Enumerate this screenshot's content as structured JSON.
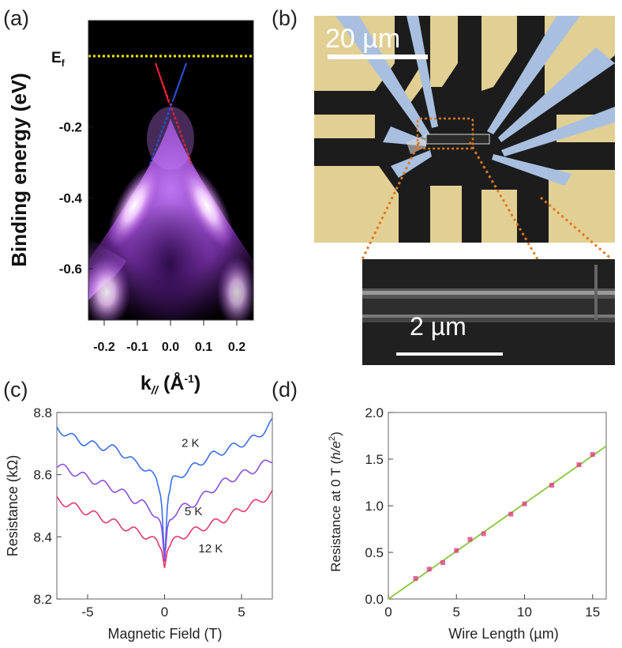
{
  "panels": {
    "a": {
      "label": "(a)",
      "ylabel": "Binding energy (eV)",
      "xlabel_main": "k",
      "xlabel_sub": "//",
      "xlabel_unit_open": " (Å",
      "xlabel_unit_sup": "-1",
      "xlabel_unit_close": ")",
      "ef_main": "E",
      "ef_sub": "f",
      "yticks": [
        {
          "label": "-0.2",
          "value": -0.2
        },
        {
          "label": "-0.4",
          "value": -0.4
        },
        {
          "label": "-0.6",
          "value": -0.6
        }
      ],
      "xticks": [
        {
          "label": "-0.2",
          "value": -0.2
        },
        {
          "label": "-0.1",
          "value": -0.1
        },
        {
          "label": "0.0",
          "value": 0.0
        },
        {
          "label": "0.1",
          "value": 0.1
        },
        {
          "label": "0.2",
          "value": 0.2
        }
      ],
      "colors": {
        "ef_line": "#f2e600",
        "dirac_red": "#e8203a",
        "dirac_blue": "#2b4fd8",
        "spectrum": "#c56bff"
      }
    },
    "b": {
      "label": "(b)",
      "scale_main": "20 µm",
      "scale_inset": "2 µm",
      "colors": {
        "pad": "#e2cf93",
        "substrate": "#1a1a1a",
        "lead": "#a9bfe0",
        "dotted": "#e07820"
      }
    }
  },
  "chart_data": [
    {
      "id": "c",
      "type": "line",
      "panel_label": "(c)",
      "title": "",
      "xlabel": "Magnetic Field (T)",
      "ylabel": "Resistance (kΩ)",
      "xlim": [
        -7,
        7
      ],
      "ylim": [
        8.2,
        8.8
      ],
      "xticks": [
        -5,
        0,
        5
      ],
      "yticks": [
        8.2,
        8.4,
        8.6,
        8.8
      ],
      "ytick_labels": [
        "8.2",
        "8.4",
        "8.6",
        "8.8"
      ],
      "xtick_labels": [
        "-5",
        "0",
        "5"
      ],
      "series": [
        {
          "name": "2 K",
          "color": "#3a6fe8",
          "label_at": [
            1.1,
            8.69
          ],
          "x": [
            -7,
            -6,
            -5,
            -4,
            -3,
            -2,
            -1.5,
            -1,
            -0.5,
            -0.2,
            0,
            0.2,
            0.5,
            1,
            1.5,
            2,
            3,
            4,
            5,
            6,
            7
          ],
          "y": [
            8.75,
            8.72,
            8.7,
            8.69,
            8.68,
            8.64,
            8.63,
            8.61,
            8.58,
            8.52,
            8.32,
            8.52,
            8.58,
            8.6,
            8.61,
            8.63,
            8.66,
            8.68,
            8.7,
            8.72,
            8.77
          ]
        },
        {
          "name": "5 K",
          "color": "#8a4fe0",
          "label_at": [
            1.3,
            8.47
          ],
          "x": [
            -7,
            -6,
            -5,
            -4,
            -3,
            -2,
            -1.5,
            -1,
            -0.5,
            -0.2,
            0,
            0.2,
            0.5,
            1,
            1.5,
            2,
            3,
            4,
            5,
            6,
            7
          ],
          "y": [
            8.63,
            8.61,
            8.59,
            8.57,
            8.55,
            8.52,
            8.51,
            8.49,
            8.47,
            8.44,
            8.32,
            8.44,
            8.47,
            8.49,
            8.5,
            8.51,
            8.55,
            8.58,
            8.6,
            8.62,
            8.65
          ]
        },
        {
          "name": "12 K",
          "color": "#e23a6a",
          "label_at": [
            2.2,
            8.35
          ],
          "x": [
            -7,
            -6,
            -5,
            -4,
            -3,
            -2,
            -1.5,
            -1,
            -0.5,
            -0.2,
            0,
            0.2,
            0.5,
            1,
            1.5,
            2,
            3,
            4,
            5,
            6,
            7
          ],
          "y": [
            8.52,
            8.5,
            8.48,
            8.46,
            8.44,
            8.42,
            8.41,
            8.4,
            8.38,
            8.36,
            8.3,
            8.36,
            8.38,
            8.4,
            8.41,
            8.42,
            8.44,
            8.46,
            8.49,
            8.51,
            8.54
          ]
        }
      ]
    },
    {
      "id": "d",
      "type": "scatter",
      "panel_label": "(d)",
      "title": "",
      "xlabel": "Wire Length (µm)",
      "ylabel_main": "Resistance at 0 T (",
      "ylabel_unit": "h/e",
      "ylabel_sup": "2",
      "ylabel_close": ")",
      "xlim": [
        0,
        16
      ],
      "ylim": [
        0,
        2.0
      ],
      "xticks": [
        0,
        5,
        10,
        15
      ],
      "xtick_labels": [
        "0",
        "5",
        "10",
        "15"
      ],
      "yticks": [
        0,
        0.5,
        1.0,
        1.5,
        2.0
      ],
      "ytick_labels": [
        "0.0",
        "0.5",
        "1.0",
        "1.5",
        "2.0"
      ],
      "points_color": "#e0307a",
      "fit_color": "#8cc63f",
      "x": [
        2,
        3,
        4,
        5,
        6,
        7,
        9,
        10,
        12,
        14,
        15
      ],
      "y": [
        0.22,
        0.32,
        0.39,
        0.52,
        0.64,
        0.7,
        0.91,
        1.02,
        1.22,
        1.44,
        1.55
      ],
      "fit": {
        "slope": 0.1025,
        "intercept": 0.0
      }
    }
  ]
}
